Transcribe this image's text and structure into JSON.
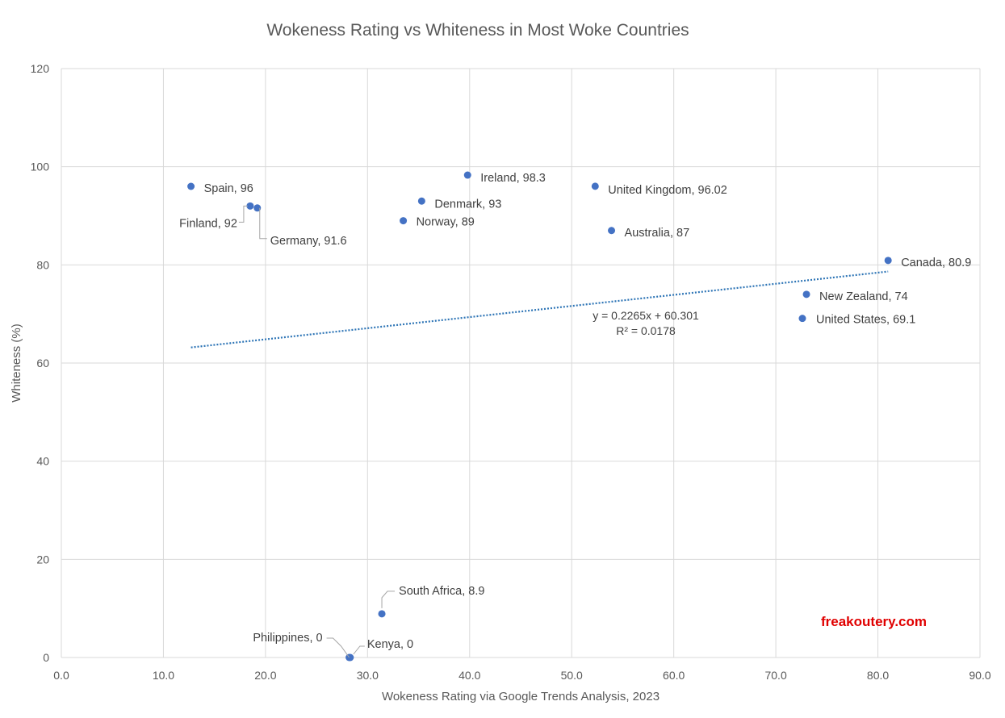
{
  "chart_data": {
    "type": "scatter",
    "title": "Wokeness Rating vs Whiteness in Most Woke Countries",
    "xlabel": "Wokeness Rating via Google Trends Analysis, 2023",
    "ylabel": "Whiteness (%)",
    "xlim": [
      0,
      90
    ],
    "ylim": [
      0,
      120
    ],
    "x_ticks": [
      "0.0",
      "10.0",
      "20.0",
      "30.0",
      "40.0",
      "50.0",
      "60.0",
      "70.0",
      "80.0",
      "90.0"
    ],
    "y_ticks": [
      "0",
      "20",
      "40",
      "60",
      "80",
      "100",
      "120"
    ],
    "grid": true,
    "points": [
      {
        "name": "Spain",
        "x": 12.7,
        "y": 96,
        "label": "Spain, 96"
      },
      {
        "name": "Finland",
        "x": 18.5,
        "y": 92,
        "label": "Finland, 92"
      },
      {
        "name": "Germany",
        "x": 19.2,
        "y": 91.6,
        "label": "Germany, 91.6"
      },
      {
        "name": "Norway",
        "x": 33.5,
        "y": 89,
        "label": "Norway, 89"
      },
      {
        "name": "Denmark",
        "x": 35.3,
        "y": 93,
        "label": "Denmark, 93"
      },
      {
        "name": "Ireland",
        "x": 39.8,
        "y": 98.3,
        "label": "Ireland, 98.3"
      },
      {
        "name": "United Kingdom",
        "x": 52.3,
        "y": 96.02,
        "label": "United Kingdom, 96.02"
      },
      {
        "name": "Australia",
        "x": 53.9,
        "y": 87,
        "label": "Australia, 87"
      },
      {
        "name": "Canada",
        "x": 81.0,
        "y": 80.9,
        "label": "Canada, 80.9"
      },
      {
        "name": "New Zealand",
        "x": 73.0,
        "y": 74,
        "label": "New Zealand, 74"
      },
      {
        "name": "United States",
        "x": 72.6,
        "y": 69.1,
        "label": "United States, 69.1"
      },
      {
        "name": "South Africa",
        "x": 31.4,
        "y": 8.9,
        "label": "South Africa, 8.9"
      },
      {
        "name": "Philippines",
        "x": 28.2,
        "y": 0,
        "label": "Philippines, 0"
      },
      {
        "name": "Kenya",
        "x": 28.3,
        "y": 0,
        "label": "Kenya, 0"
      }
    ],
    "trendline": {
      "type": "linear",
      "slope": 0.2265,
      "intercept": 60.301,
      "x_range": [
        12.7,
        81.0
      ],
      "equation": "y = 0.2265x + 60.301",
      "r_squared": "R² = 0.0178"
    },
    "watermark": "freakoutery.com",
    "colors": {
      "marker": "#4472c4",
      "trend": "#2e75b6",
      "grid": "#d9d9d9",
      "text": "#595959",
      "watermark": "#e00000"
    }
  }
}
